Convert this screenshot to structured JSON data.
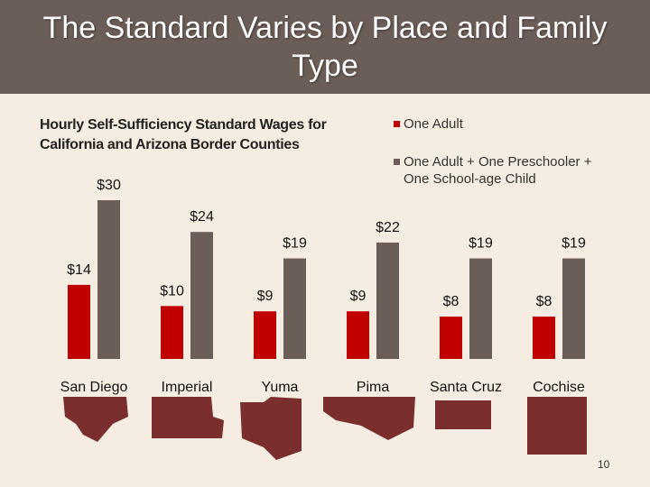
{
  "title": "The Standard Varies by Place and Family Type",
  "page_number": "10",
  "colors": {
    "series1": "#c00000",
    "series2": "#6b5d57",
    "map": "#7a2e2e",
    "title_bg": "#6b5d57",
    "background": "#f5ede1"
  },
  "chart_data": {
    "type": "bar",
    "title": "Hourly Self-Sufficiency Standard Wages for California and Arizona Border Counties",
    "categories": [
      "San Diego",
      "Imperial",
      "Yuma",
      "Pima",
      "Santa Cruz",
      "Cochise"
    ],
    "series": [
      {
        "name": "One Adult",
        "values": [
          14,
          10,
          9,
          9,
          8,
          8
        ],
        "labels": [
          "$14",
          "$10",
          "$9",
          "$9",
          "$8",
          "$8"
        ]
      },
      {
        "name": "One Adult + One Preschooler + One School-age Child",
        "values": [
          30,
          24,
          19,
          22,
          19,
          19
        ],
        "labels": [
          "$30",
          "$24",
          "$19",
          "$22",
          "$19",
          "$19"
        ]
      }
    ],
    "ylim": [
      0,
      30
    ],
    "grid": false,
    "legend_position": "top-right"
  }
}
